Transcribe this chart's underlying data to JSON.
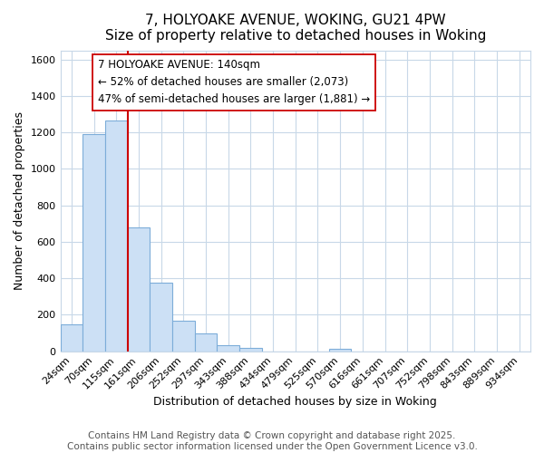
{
  "title": "7, HOLYOAKE AVENUE, WOKING, GU21 4PW",
  "subtitle": "Size of property relative to detached houses in Woking",
  "xlabel": "Distribution of detached houses by size in Woking",
  "ylabel": "Number of detached properties",
  "categories": [
    "24sqm",
    "70sqm",
    "115sqm",
    "161sqm",
    "206sqm",
    "252sqm",
    "297sqm",
    "343sqm",
    "388sqm",
    "434sqm",
    "479sqm",
    "525sqm",
    "570sqm",
    "616sqm",
    "661sqm",
    "707sqm",
    "752sqm",
    "798sqm",
    "843sqm",
    "889sqm",
    "934sqm"
  ],
  "values": [
    145,
    1190,
    1265,
    680,
    375,
    165,
    95,
    35,
    20,
    0,
    0,
    0,
    15,
    0,
    0,
    0,
    0,
    0,
    0,
    0,
    0
  ],
  "bar_color": "#cce0f5",
  "bar_edge_color": "#7dadd9",
  "vline_x": 2.5,
  "vline_color": "#cc0000",
  "annotation_text_1": "7 HOLYOAKE AVENUE: 140sqm",
  "annotation_text_2": "← 52% of detached houses are smaller (2,073)",
  "annotation_text_3": "47% of semi-detached houses are larger (1,881) →",
  "annotation_box_color": "#ffffff",
  "annotation_border_color": "#cc0000",
  "ylim": [
    0,
    1650
  ],
  "yticks": [
    0,
    200,
    400,
    600,
    800,
    1000,
    1200,
    1400,
    1600
  ],
  "footer_line1": "Contains HM Land Registry data © Crown copyright and database right 2025.",
  "footer_line2": "Contains public sector information licensed under the Open Government Licence v3.0.",
  "background_color": "#ffffff",
  "plot_bg_color": "#ffffff",
  "grid_color": "#c8d8e8",
  "title_fontsize": 11,
  "axis_label_fontsize": 9,
  "tick_fontsize": 8,
  "footer_fontsize": 7.5,
  "annotation_fontsize": 8.5
}
